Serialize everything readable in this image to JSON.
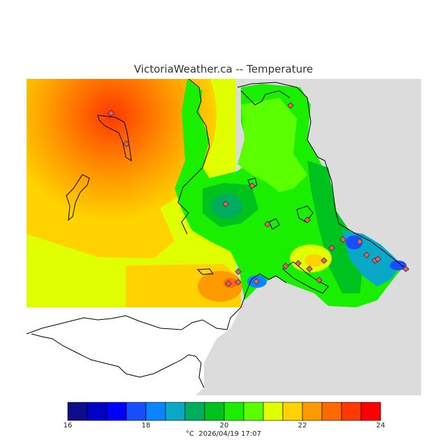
{
  "title": "VictoriaWeather.ca -- Temperature",
  "footer": "°C  2026/04/19 17:07",
  "legend": {
    "min": 16,
    "max": 24,
    "ticks": [
      "16",
      "18",
      "20",
      "22",
      "24"
    ],
    "colors": [
      "#0d0d8a",
      "#0000c8",
      "#0000ff",
      "#1a4dff",
      "#0a85ff",
      "#0aa8c8",
      "#00ad5e",
      "#00c21e",
      "#1aef00",
      "#5aff00",
      "#e0ff00",
      "#ffd200",
      "#ff9a00",
      "#ff6a00",
      "#ff3800",
      "#ff0000"
    ]
  },
  "map": {
    "land_color": "#dcdcdc",
    "water_color": "#ffffff",
    "station_marker_color": "#a0522d"
  }
}
